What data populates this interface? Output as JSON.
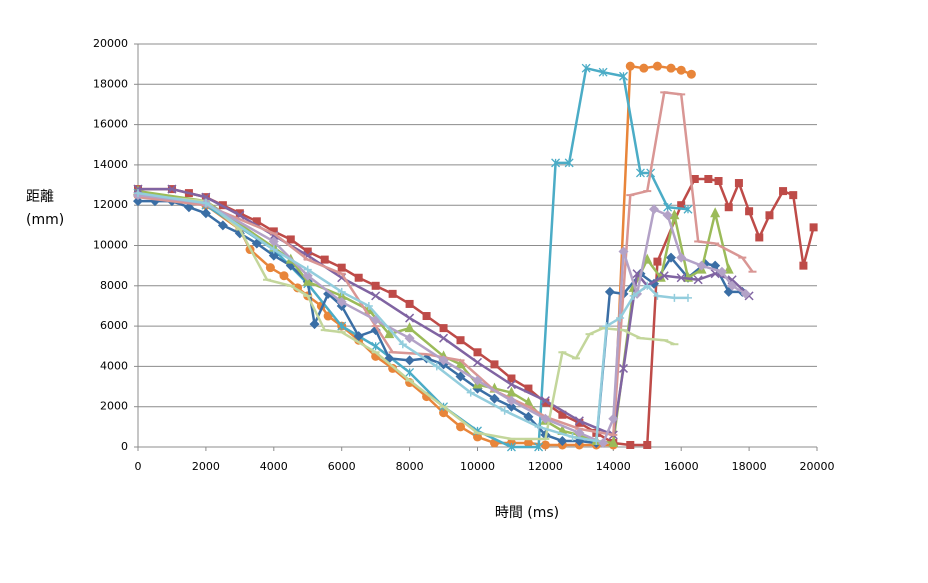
{
  "chart_data": {
    "type": "line",
    "x_label": "時間 (ms)",
    "y_label": [
      "距離",
      "(mm)"
    ],
    "xlim": [
      0,
      20000
    ],
    "xticks": [
      0,
      2000,
      4000,
      6000,
      8000,
      10000,
      12000,
      14000,
      16000,
      18000,
      20000
    ],
    "ylim": [
      0,
      20000
    ],
    "yticks": [
      0,
      2000,
      4000,
      6000,
      8000,
      10000,
      12000,
      14000,
      16000,
      18000,
      20000
    ],
    "grid": true,
    "series": [
      {
        "color": "#e8853a",
        "marker": "circle",
        "x": [
          0,
          2000,
          3000,
          3300,
          3900,
          4300,
          4700,
          5000,
          5400,
          5600,
          6000,
          6500,
          7000,
          7500,
          8000,
          8500,
          9000,
          9500,
          10000,
          10500,
          11000,
          11500,
          12000,
          12500,
          13000,
          13500,
          14000,
          14500,
          14900,
          15300,
          15700,
          16000,
          16300
        ],
        "values": [
          12500,
          12000,
          10800,
          9800,
          8900,
          8500,
          7900,
          7500,
          7000,
          6500,
          6000,
          5300,
          4500,
          3900,
          3200,
          2500,
          1700,
          1000,
          500,
          200,
          200,
          200,
          100,
          100,
          100,
          100,
          100,
          18900,
          18800,
          18900,
          18800,
          18700,
          18500
        ]
      },
      {
        "color": "#be4b48",
        "marker": "square",
        "x": [
          0,
          1000,
          1500,
          2000,
          2500,
          3000,
          3500,
          4000,
          4500,
          5000,
          5500,
          6000,
          6500,
          7000,
          7500,
          8000,
          8500,
          9000,
          9500,
          10000,
          10500,
          11000,
          11500,
          12000,
          12500,
          13000,
          13500,
          14000,
          14500,
          15000,
          15300,
          16000,
          16400,
          16800,
          17100,
          17400,
          17700,
          18000,
          18300,
          18600,
          19000,
          19300,
          19600,
          19900
        ],
        "values": [
          12800,
          12800,
          12600,
          12400,
          12000,
          11600,
          11200,
          10700,
          10300,
          9700,
          9300,
          8900,
          8400,
          8000,
          7600,
          7100,
          6500,
          5900,
          5300,
          4700,
          4100,
          3400,
          2900,
          2200,
          1600,
          1200,
          700,
          200,
          100,
          100,
          9200,
          12000,
          13300,
          13300,
          13200,
          11900,
          13100,
          11700,
          10400,
          11500,
          12700,
          12500,
          9000,
          10900
        ]
      },
      {
        "color": "#4bacc6",
        "marker": "asterisk",
        "x": [
          0,
          2000,
          4000,
          5000,
          6000,
          7000,
          8000,
          9000,
          10000,
          11000,
          11800,
          12300,
          12700,
          13200,
          13700,
          14300,
          14800,
          15100,
          15600,
          16200
        ],
        "values": [
          12600,
          12000,
          9800,
          8100,
          6000,
          5000,
          3700,
          2000,
          800,
          0,
          0,
          14100,
          14100,
          18800,
          18600,
          18400,
          13600,
          13600,
          11900,
          11800
        ]
      },
      {
        "color": "#3a6ea5",
        "marker": "diamond",
        "x": [
          0,
          500,
          1000,
          1500,
          2000,
          2500,
          3000,
          3500,
          4000,
          4500,
          5000,
          5200,
          5600,
          6000,
          6500,
          7000,
          7400,
          8000,
          8500,
          9000,
          9500,
          10000,
          10500,
          11000,
          11500,
          12000,
          12500,
          13000,
          13500,
          13900,
          14300,
          14800,
          15200,
          15700,
          16200,
          16700,
          17000,
          17400,
          17800
        ],
        "values": [
          12200,
          12200,
          12200,
          11900,
          11600,
          11000,
          10600,
          10100,
          9500,
          9000,
          8200,
          6100,
          7600,
          7000,
          5500,
          5800,
          4400,
          4300,
          4400,
          4100,
          3500,
          2900,
          2400,
          2000,
          1500,
          600,
          300,
          300,
          200,
          7700,
          7600,
          8600,
          8100,
          9400,
          8400,
          9100,
          9000,
          7700,
          7700
        ]
      },
      {
        "color": "#9bbb59",
        "marker": "triangle",
        "x": [
          0,
          2000,
          4000,
          4500,
          5000,
          6000,
          6800,
          7400,
          8000,
          9000,
          9500,
          10000,
          10500,
          11000,
          11500,
          12000,
          12500,
          13000,
          13500,
          14000,
          14600,
          15000,
          15400,
          15800,
          16200,
          16600,
          17000,
          17400
        ],
        "values": [
          12700,
          12200,
          9900,
          9300,
          8200,
          7500,
          6800,
          5600,
          5900,
          4500,
          4100,
          3100,
          2900,
          2700,
          2200,
          1300,
          800,
          600,
          300,
          200,
          7900,
          9300,
          8400,
          11500,
          8400,
          8800,
          11600,
          8800
        ]
      },
      {
        "color": "#8064a2",
        "marker": "x",
        "x": [
          0,
          1000,
          2000,
          3000,
          4000,
          5000,
          6000,
          7000,
          8000,
          9000,
          10000,
          11000,
          12000,
          13000,
          14000,
          14300,
          14700,
          15000,
          15500,
          16000,
          16500,
          17000,
          17500,
          18000
        ],
        "values": [
          12800,
          12800,
          12400,
          11500,
          10500,
          9500,
          8400,
          7500,
          6400,
          5400,
          4200,
          3100,
          2300,
          1300,
          600,
          3900,
          8600,
          8000,
          8500,
          8400,
          8300,
          8600,
          8300,
          7500
        ]
      },
      {
        "color": "#d99694",
        "marker": "dash",
        "x": [
          0,
          2000,
          4000,
          5000,
          6000,
          7000,
          7500,
          8500,
          9500,
          10500,
          11500,
          12000,
          13000,
          14000,
          14500,
          15000,
          15500,
          16000,
          16500,
          17000,
          17800,
          18100
        ],
        "values": [
          12400,
          12000,
          10600,
          9300,
          8600,
          6000,
          4700,
          4600,
          4300,
          2800,
          2000,
          1500,
          900,
          600,
          12500,
          12700,
          17600,
          17500,
          10200,
          10100,
          9400,
          8700
        ]
      },
      {
        "color": "#c3d69b",
        "marker": "dash",
        "x": [
          0,
          2000,
          3000,
          3800,
          4500,
          5000,
          5500,
          6000,
          7000,
          8000,
          9000,
          10000,
          11000,
          12000,
          12500,
          12900,
          13300,
          13700,
          14300,
          14800,
          15500,
          15800
        ],
        "values": [
          12500,
          12200,
          10800,
          8300,
          8000,
          7500,
          5800,
          5700,
          4700,
          3300,
          2000,
          700,
          400,
          400,
          4700,
          4400,
          5600,
          5900,
          5800,
          5400,
          5300,
          5100
        ]
      },
      {
        "color": "#b3a2c7",
        "marker": "diamond",
        "x": [
          0,
          2000,
          4000,
          5000,
          6000,
          7000,
          8000,
          9000,
          10000,
          11000,
          12000,
          13000,
          13700,
          14000,
          14300,
          14700,
          15200,
          15600,
          16000,
          16600,
          17200,
          17500,
          17900
        ],
        "values": [
          12500,
          12100,
          10200,
          8500,
          7200,
          6300,
          5400,
          4300,
          3300,
          2300,
          1400,
          700,
          200,
          1400,
          9700,
          7600,
          11800,
          11500,
          9400,
          9000,
          8700,
          8000,
          7600
        ]
      },
      {
        "color": "#93cddd",
        "marker": "plus",
        "x": [
          0,
          2000,
          4000,
          5000,
          6000,
          6800,
          7800,
          8800,
          9800,
          10800,
          11800,
          12800,
          13500,
          13800,
          14200,
          14600,
          15000,
          15300,
          15800,
          16200
        ],
        "values": [
          12600,
          12100,
          9800,
          8800,
          7700,
          7000,
          5100,
          4000,
          2700,
          1800,
          1000,
          500,
          300,
          6000,
          6400,
          7500,
          8000,
          7500,
          7400,
          7400
        ]
      }
    ]
  }
}
